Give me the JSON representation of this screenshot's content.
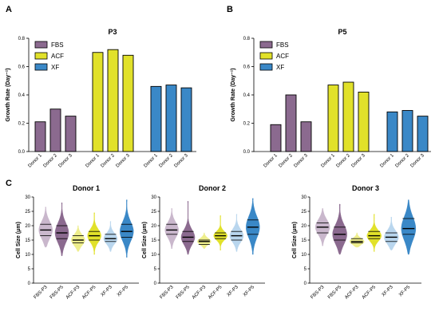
{
  "colors": {
    "FBS": "#8b6a8f",
    "ACF": "#e1e12a",
    "XF": "#3a88c7",
    "FBS_light": "#c9b7cc",
    "ACF_light": "#eeee8c",
    "XF_light": "#b9d6ee"
  },
  "panel_letters": {
    "a": "A",
    "b": "B",
    "c": "C"
  },
  "chart_data": [
    {
      "type": "bar",
      "panel": "A",
      "title": "P3",
      "ylabel": "Growth Rate (Day⁻¹)",
      "ylim": [
        0,
        0.8
      ],
      "yticks": [
        0.0,
        0.2,
        0.4,
        0.6,
        0.8
      ],
      "tick_labels": [
        "0.0",
        "0.2",
        "0.4",
        "0.6",
        "0.8"
      ],
      "categories": [
        "Donor 1",
        "Donor 2",
        "Donor 3"
      ],
      "legend_position": "top-left",
      "series": [
        {
          "name": "FBS",
          "values": [
            0.21,
            0.3,
            0.25
          ]
        },
        {
          "name": "ACF",
          "values": [
            0.7,
            0.72,
            0.68
          ]
        },
        {
          "name": "XF",
          "values": [
            0.46,
            0.47,
            0.45
          ]
        }
      ]
    },
    {
      "type": "bar",
      "panel": "B",
      "title": "P5",
      "ylabel": "Growth Rate (Day⁻¹)",
      "ylim": [
        0,
        0.8
      ],
      "yticks": [
        0.0,
        0.2,
        0.4,
        0.6,
        0.8
      ],
      "tick_labels": [
        "0.0",
        "0.2",
        "0.4",
        "0.6",
        "0.8"
      ],
      "categories": [
        "Donor 1",
        "Donor 2",
        "Donor 3"
      ],
      "legend_position": "top-left",
      "series": [
        {
          "name": "FBS",
          "values": [
            0.19,
            0.4,
            0.21
          ]
        },
        {
          "name": "ACF",
          "values": [
            0.47,
            0.49,
            0.42
          ]
        },
        {
          "name": "XF",
          "values": [
            0.28,
            0.29,
            0.25
          ]
        }
      ]
    },
    {
      "type": "violin",
      "panel": "C",
      "title": "Donor 1",
      "ylabel": "Cell Size (μm)",
      "ylim": [
        0,
        30
      ],
      "yticks": [
        0,
        5,
        10,
        15,
        20,
        25,
        30
      ],
      "tick_labels": [
        "0",
        "5",
        "10",
        "15",
        "20",
        "25",
        "30"
      ],
      "categories": [
        "FBS-P3",
        "FBS-P5",
        "ACF-P3",
        "ACF-P5",
        "XF-P3",
        "XF-P5"
      ],
      "groups": [
        {
          "label": "FBS-P3",
          "group": "FBS",
          "min": 12.5,
          "max": 26.5,
          "q1": 16.5,
          "median": 18.5,
          "q3": 20.5
        },
        {
          "label": "FBS-P5",
          "group": "FBS",
          "min": 9.5,
          "max": 28.0,
          "q1": 15.5,
          "median": 17.5,
          "q3": 20.0
        },
        {
          "label": "ACF-P3",
          "group": "ACF",
          "min": 11.0,
          "max": 20.0,
          "q1": 14.0,
          "median": 15.0,
          "q3": 16.5
        },
        {
          "label": "ACF-P5",
          "group": "ACF",
          "min": 10.0,
          "max": 24.5,
          "q1": 15.0,
          "median": 16.5,
          "q3": 18.0
        },
        {
          "label": "XF-P3",
          "group": "XF",
          "min": 11.0,
          "max": 21.5,
          "q1": 14.5,
          "median": 15.5,
          "q3": 17.0
        },
        {
          "label": "XF-P5",
          "group": "XF",
          "min": 9.0,
          "max": 29.0,
          "q1": 16.0,
          "median": 18.0,
          "q3": 20.5
        }
      ]
    },
    {
      "type": "violin",
      "panel": "C",
      "title": "Donor 2",
      "ylabel": "Cell Size (μm)",
      "ylim": [
        0,
        30
      ],
      "yticks": [
        0,
        5,
        10,
        15,
        20,
        25,
        30
      ],
      "tick_labels": [
        "0",
        "5",
        "10",
        "15",
        "20",
        "25",
        "30"
      ],
      "categories": [
        "FBS-P3",
        "FBS-P5",
        "ACF-P3",
        "ACF-P5",
        "XF-P3",
        "XF-P5"
      ],
      "groups": [
        {
          "label": "FBS-P3",
          "group": "FBS",
          "min": 12.0,
          "max": 26.0,
          "q1": 17.0,
          "median": 18.5,
          "q3": 20.5
        },
        {
          "label": "FBS-P5",
          "group": "FBS",
          "min": 10.0,
          "max": 28.5,
          "q1": 14.5,
          "median": 16.0,
          "q3": 18.0
        },
        {
          "label": "ACF-P3",
          "group": "ACF",
          "min": 12.0,
          "max": 17.5,
          "q1": 13.5,
          "median": 14.5,
          "q3": 15.0
        },
        {
          "label": "ACF-P5",
          "group": "ACF",
          "min": 11.5,
          "max": 23.5,
          "q1": 15.5,
          "median": 16.5,
          "q3": 17.5
        },
        {
          "label": "XF-P3",
          "group": "XF",
          "min": 11.0,
          "max": 24.0,
          "q1": 15.0,
          "median": 16.5,
          "q3": 18.0
        },
        {
          "label": "XF-P5",
          "group": "XF",
          "min": 10.0,
          "max": 29.5,
          "q1": 17.0,
          "median": 19.5,
          "q3": 22.0
        }
      ]
    },
    {
      "type": "violin",
      "panel": "C",
      "title": "Donor 3",
      "ylabel": "Cell Size (μm)",
      "ylim": [
        0,
        30
      ],
      "yticks": [
        0,
        5,
        10,
        15,
        20,
        25,
        30
      ],
      "tick_labels": [
        "0",
        "5",
        "10",
        "15",
        "20",
        "25",
        "30"
      ],
      "categories": [
        "FBS-P3",
        "FBS-P5",
        "ACF-P3",
        "ACF-P5",
        "XF-P3",
        "XF-P5"
      ],
      "groups": [
        {
          "label": "FBS-P3",
          "group": "FBS",
          "min": 13.0,
          "max": 26.0,
          "q1": 17.5,
          "median": 19.5,
          "q3": 21.0
        },
        {
          "label": "FBS-P5",
          "group": "FBS",
          "min": 10.0,
          "max": 27.5,
          "q1": 15.0,
          "median": 17.0,
          "q3": 19.5
        },
        {
          "label": "ACF-P3",
          "group": "ACF",
          "min": 12.5,
          "max": 17.5,
          "q1": 14.0,
          "median": 14.5,
          "q3": 15.5
        },
        {
          "label": "ACF-P5",
          "group": "ACF",
          "min": 11.0,
          "max": 24.0,
          "q1": 15.5,
          "median": 16.5,
          "q3": 18.0
        },
        {
          "label": "XF-P3",
          "group": "XF",
          "min": 11.5,
          "max": 23.0,
          "q1": 14.5,
          "median": 16.0,
          "q3": 17.5
        },
        {
          "label": "XF-P5",
          "group": "XF",
          "min": 10.0,
          "max": 29.0,
          "q1": 17.0,
          "median": 19.0,
          "q3": 22.5
        }
      ]
    }
  ]
}
